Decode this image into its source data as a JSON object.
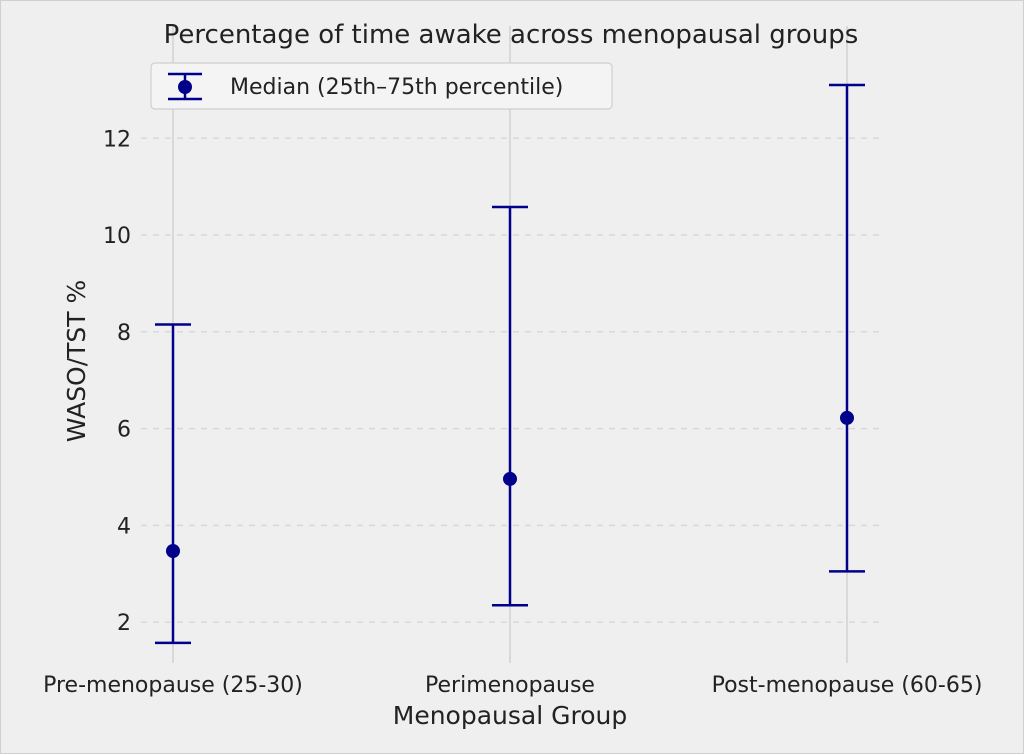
{
  "chart_data": {
    "type": "errorbar",
    "title": "Percentage of time awake across menopausal groups",
    "xlabel": "Menopausal Group",
    "ylabel": "WASO/TST %",
    "categories": [
      "Pre-menopause (25-30)",
      "Perimenopause",
      "Post-menopause (60-65)"
    ],
    "series": [
      {
        "name": "Median (25th–75th percentile)",
        "median": [
          3.47,
          4.96,
          6.22
        ],
        "lower": [
          1.57,
          2.35,
          3.05
        ],
        "upper": [
          8.15,
          10.58,
          13.1
        ]
      }
    ],
    "ylim": [
      1.3,
      13.7
    ],
    "yticks": [
      "2",
      "4",
      "6",
      "8",
      "10",
      "12"
    ],
    "grid": "on",
    "legend_position": "top-left",
    "colors": {
      "series": "#00008b",
      "grid": "#d9d9d9",
      "background": "#efefef"
    }
  }
}
